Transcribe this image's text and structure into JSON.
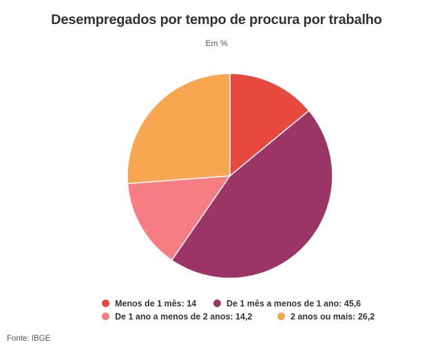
{
  "chart_data": {
    "type": "pie",
    "title": "Desempregados por tempo de procura por trabalho",
    "subtitle": "Em %",
    "slices": [
      {
        "label": "Menos de 1 mês",
        "value": 14,
        "value_text": "14",
        "color": "#e8493f"
      },
      {
        "label": "De 1 mês a menos de 1 ano",
        "value": 45.6,
        "value_text": "45,6",
        "color": "#9b3566"
      },
      {
        "label": "De 1 ano a menos de 2 anos",
        "value": 14.2,
        "value_text": "14,2",
        "color": "#f87c84"
      },
      {
        "label": "2 anos ou mais",
        "value": 26.2,
        "value_text": "26,2",
        "color": "#f9a651"
      }
    ],
    "legend_position": "bottom",
    "legend": [
      "Menos de 1 mês: 14",
      "De 1 mês a menos de 1 ano: 45,6",
      "De 1 ano a menos de 2 anos: 14,2",
      "2 anos ou mais: 26,2"
    ],
    "source": "Fonte: IBGE"
  }
}
